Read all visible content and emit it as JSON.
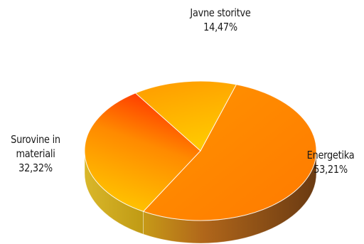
{
  "chart_data": {
    "type": "pie",
    "style": "3d",
    "title": "",
    "labels": [
      "Energetika",
      "Surovine in materiali",
      "Javne storitve"
    ],
    "values": [
      53.21,
      32.32,
      14.47
    ],
    "value_labels": [
      "53,21%",
      "32,32%",
      "14,47%"
    ],
    "label_lines": [
      [
        "Energetika"
      ],
      [
        "Surovine in",
        "materiali"
      ],
      [
        "Javne storitve"
      ]
    ],
    "colors": [
      "#ff8c00",
      "#ff9a00",
      "#ffb000"
    ],
    "legend": "none",
    "unit": "%"
  }
}
